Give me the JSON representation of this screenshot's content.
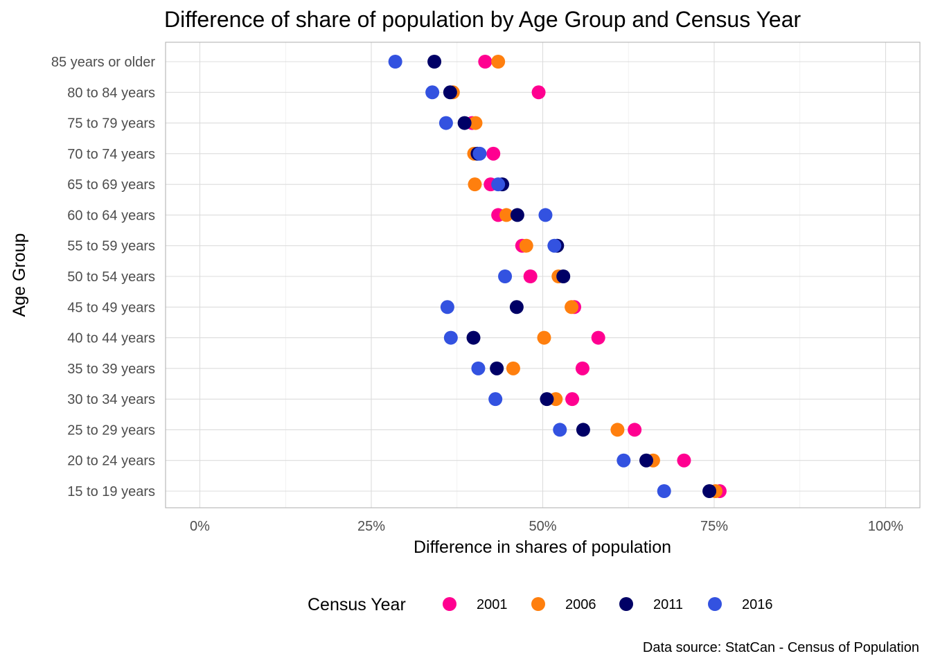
{
  "chart_data": {
    "type": "scatter",
    "title": "Difference of share of population by Age Group and Census Year",
    "xlabel": "Difference in shares of population",
    "ylabel": "Age Group",
    "caption": "Data source: StatCan - Census of Population",
    "xlim": [
      -0.05,
      1.05
    ],
    "x_ticks": [
      0,
      0.25,
      0.5,
      0.75,
      1.0
    ],
    "x_tick_labels": [
      "0%",
      "25%",
      "50%",
      "75%",
      "100%"
    ],
    "grid": true,
    "legend": {
      "title": "Census Year",
      "position": "bottom"
    },
    "categories": [
      "15 to 19 years",
      "20 to 24 years",
      "25 to 29 years",
      "30 to 34 years",
      "35 to 39 years",
      "40 to 44 years",
      "45 to 49 years",
      "50 to 54 years",
      "55 to 59 years",
      "60 to 64 years",
      "65 to 69 years",
      "70 to 74 years",
      "75 to 79 years",
      "80 to 84 years",
      "85 years or older"
    ],
    "series": [
      {
        "name": "2001",
        "color": "#ff0090",
        "values": [
          0.758,
          0.706,
          0.634,
          0.543,
          0.558,
          0.581,
          0.546,
          0.482,
          0.47,
          0.435,
          0.424,
          0.428,
          0.397,
          0.494,
          0.416
        ]
      },
      {
        "name": "2006",
        "color": "#ff7f0e",
        "values": [
          0.752,
          0.661,
          0.609,
          0.519,
          0.457,
          0.502,
          0.542,
          0.523,
          0.476,
          0.447,
          0.401,
          0.4,
          0.402,
          0.369,
          0.435
        ]
      },
      {
        "name": "2011",
        "color": "#000066",
        "values": [
          0.743,
          0.651,
          0.559,
          0.506,
          0.433,
          0.399,
          0.462,
          0.53,
          0.521,
          0.463,
          0.441,
          0.405,
          0.386,
          0.365,
          0.342
        ]
      },
      {
        "name": "2016",
        "color": "#3352e0",
        "values": [
          0.677,
          0.618,
          0.525,
          0.431,
          0.406,
          0.366,
          0.361,
          0.445,
          0.517,
          0.504,
          0.435,
          0.408,
          0.359,
          0.339,
          0.285
        ]
      }
    ]
  }
}
